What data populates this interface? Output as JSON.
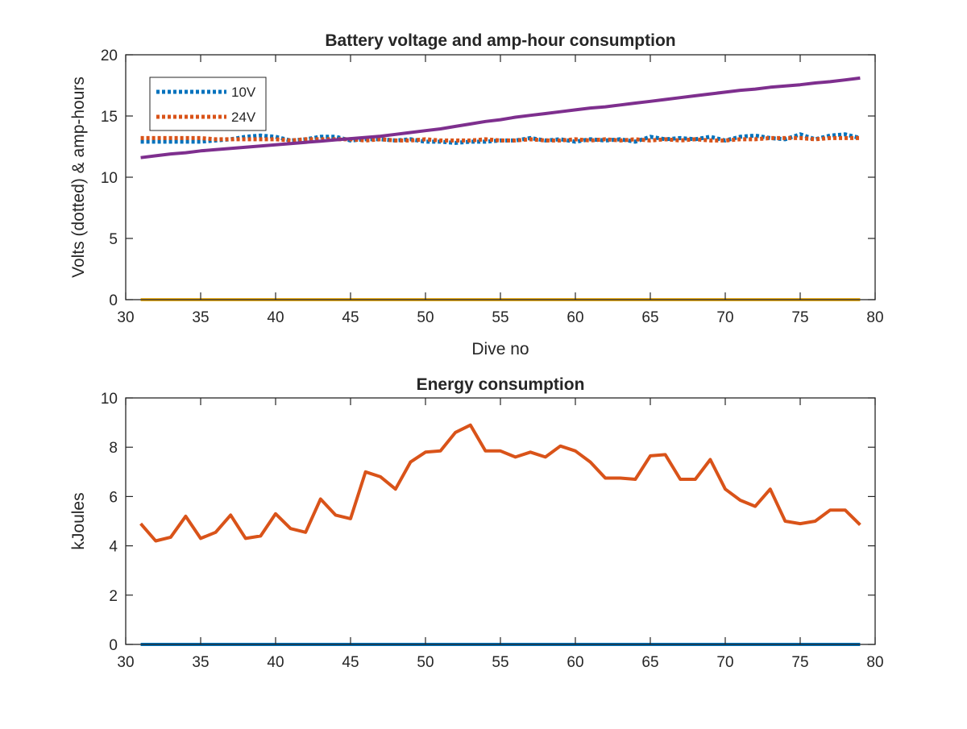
{
  "colors": {
    "blue": "#0072BD",
    "orange": "#D95319",
    "yellow": "#EDB120",
    "purple": "#7E2F8E",
    "axis": "#262626"
  },
  "chart_data": [
    {
      "type": "line",
      "title": "Battery voltage and amp-hour consumption",
      "xlabel": "Dive no",
      "ylabel": "Volts (dotted) & amp-hours",
      "xlim": [
        30,
        80
      ],
      "ylim": [
        0,
        20
      ],
      "xticks": [
        30,
        35,
        40,
        45,
        50,
        55,
        60,
        65,
        70,
        75,
        80
      ],
      "yticks": [
        0,
        5,
        10,
        15,
        20
      ],
      "x_tick_labels": [
        "30",
        "35",
        "40",
        "45",
        "50",
        "55",
        "60",
        "65",
        "70",
        "75",
        "80"
      ],
      "y_tick_labels": [
        "0",
        "5",
        "10",
        "15",
        "20"
      ],
      "grid": false,
      "legend": {
        "location": "top-left",
        "entries": [
          "10V",
          "24V"
        ]
      },
      "x": [
        31,
        32,
        33,
        34,
        35,
        36,
        37,
        38,
        39,
        40,
        41,
        42,
        43,
        44,
        45,
        46,
        47,
        48,
        49,
        50,
        51,
        52,
        53,
        54,
        55,
        56,
        57,
        58,
        59,
        60,
        61,
        62,
        63,
        64,
        65,
        66,
        67,
        68,
        69,
        70,
        71,
        72,
        73,
        74,
        75,
        76,
        77,
        78,
        79
      ],
      "series": [
        {
          "name": "10V",
          "style": "dotted",
          "color": "blue",
          "values": [
            12.9,
            12.9,
            12.9,
            12.9,
            12.9,
            13.0,
            13.1,
            13.3,
            13.4,
            13.3,
            13.0,
            13.1,
            13.3,
            13.3,
            13.0,
            13.1,
            13.1,
            13.0,
            13.1,
            12.9,
            12.9,
            12.8,
            12.9,
            12.9,
            13.0,
            13.0,
            13.2,
            13.0,
            13.1,
            12.9,
            13.1,
            13.0,
            13.1,
            12.9,
            13.3,
            13.1,
            13.2,
            13.1,
            13.3,
            13.0,
            13.3,
            13.4,
            13.2,
            13.1,
            13.5,
            13.1,
            13.4,
            13.5,
            13.2
          ]
        },
        {
          "style": "dotted",
          "color": "orange",
          "values": [
            13.2,
            13.2,
            13.2,
            13.2,
            13.2,
            13.1,
            13.1,
            13.1,
            13.1,
            13.1,
            13.0,
            13.1,
            13.1,
            13.1,
            13.1,
            13.0,
            13.1,
            13.0,
            13.0,
            13.1,
            13.0,
            13.0,
            13.0,
            13.1,
            13.0,
            13.0,
            13.1,
            13.0,
            13.0,
            13.1,
            13.0,
            13.1,
            13.0,
            13.1,
            13.0,
            13.1,
            13.0,
            13.1,
            13.0,
            13.0,
            13.1,
            13.1,
            13.2,
            13.2,
            13.2,
            13.1,
            13.2,
            13.2,
            13.2
          ]
        },
        {
          "style": "solid",
          "color": "yellow",
          "values": [
            0,
            0,
            0,
            0,
            0,
            0,
            0,
            0,
            0,
            0,
            0,
            0,
            0,
            0,
            0,
            0,
            0,
            0,
            0,
            0,
            0,
            0,
            0,
            0,
            0,
            0,
            0,
            0,
            0,
            0,
            0,
            0,
            0,
            0,
            0,
            0,
            0,
            0,
            0,
            0,
            0,
            0,
            0,
            0,
            0,
            0,
            0,
            0,
            0
          ]
        },
        {
          "style": "solid",
          "color": "purple",
          "values": [
            11.6,
            11.75,
            11.9,
            12.0,
            12.15,
            12.25,
            12.35,
            12.45,
            12.55,
            12.65,
            12.75,
            12.85,
            12.95,
            13.05,
            13.15,
            13.25,
            13.35,
            13.5,
            13.65,
            13.8,
            13.95,
            14.15,
            14.35,
            14.55,
            14.7,
            14.9,
            15.05,
            15.2,
            15.35,
            15.5,
            15.65,
            15.75,
            15.9,
            16.05,
            16.2,
            16.35,
            16.5,
            16.65,
            16.8,
            16.95,
            17.1,
            17.2,
            17.35,
            17.45,
            17.55,
            17.7,
            17.8,
            17.95,
            18.1
          ]
        }
      ]
    },
    {
      "type": "line",
      "title": "Energy consumption",
      "xlabel": "",
      "ylabel": "kJoules",
      "xlim": [
        30,
        80
      ],
      "ylim": [
        0,
        10
      ],
      "xticks": [
        30,
        35,
        40,
        45,
        50,
        55,
        60,
        65,
        70,
        75,
        80
      ],
      "yticks": [
        0,
        2,
        4,
        6,
        8,
        10
      ],
      "x_tick_labels": [
        "30",
        "35",
        "40",
        "45",
        "50",
        "55",
        "60",
        "65",
        "70",
        "75",
        "80"
      ],
      "y_tick_labels": [
        "0",
        "2",
        "4",
        "6",
        "8",
        "10"
      ],
      "grid": false,
      "x": [
        31,
        32,
        33,
        34,
        35,
        36,
        37,
        38,
        39,
        40,
        41,
        42,
        43,
        44,
        45,
        46,
        47,
        48,
        49,
        50,
        51,
        52,
        53,
        54,
        55,
        56,
        57,
        58,
        59,
        60,
        61,
        62,
        63,
        64,
        65,
        66,
        67,
        68,
        69,
        70,
        71,
        72,
        73,
        74,
        75,
        76,
        77,
        78,
        79
      ],
      "series": [
        {
          "style": "solid",
          "color": "orange",
          "values": [
            4.9,
            4.2,
            4.35,
            5.2,
            4.3,
            4.55,
            5.25,
            4.3,
            4.4,
            5.3,
            4.7,
            4.55,
            5.9,
            5.25,
            5.1,
            7.0,
            6.8,
            6.3,
            7.4,
            7.8,
            7.85,
            8.6,
            8.9,
            7.85,
            7.85,
            7.6,
            7.8,
            7.6,
            8.05,
            7.85,
            7.4,
            6.75,
            6.75,
            6.7,
            7.65,
            7.7,
            6.7,
            6.7,
            7.5,
            6.3,
            5.85,
            5.6,
            6.3,
            5.0,
            4.9,
            5.0,
            5.45,
            5.45,
            4.85
          ]
        },
        {
          "style": "solid",
          "color": "blue",
          "values": [
            0,
            0,
            0,
            0,
            0,
            0,
            0,
            0,
            0,
            0,
            0,
            0,
            0,
            0,
            0,
            0,
            0,
            0,
            0,
            0,
            0,
            0,
            0,
            0,
            0,
            0,
            0,
            0,
            0,
            0,
            0,
            0,
            0,
            0,
            0,
            0,
            0,
            0,
            0,
            0,
            0,
            0,
            0,
            0,
            0,
            0,
            0,
            0,
            0
          ]
        }
      ]
    }
  ]
}
